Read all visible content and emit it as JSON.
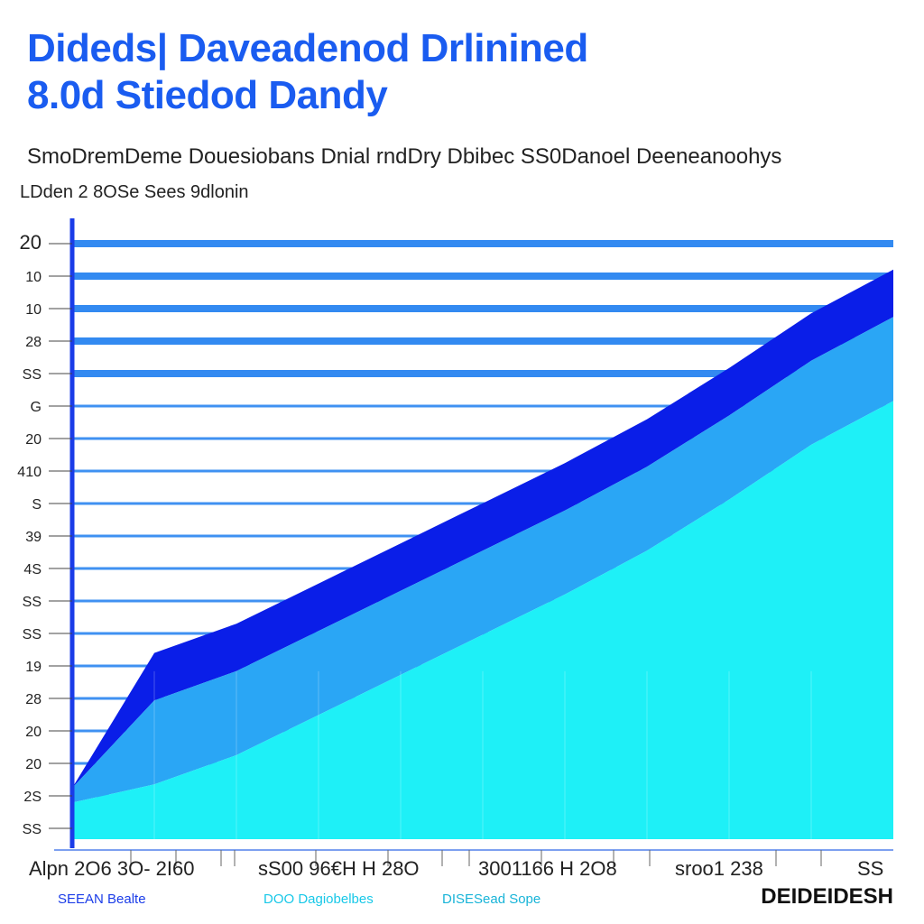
{
  "header": {
    "title_line1": "Dideds| Daveadenod Drlinined",
    "title_line2": "8.0d Stiedod Dandy",
    "subtitle": "SmoDremDeme Douesiobans Dnial rndDry Dbibec SS0Danoel Deeneanoohys",
    "series_label": "LDden 2 8OSe  Sees 9dlonin"
  },
  "chart_data": {
    "type": "area",
    "title": "Dideds| Daveadenod Drlinined 8.0d Stiedod Dandy",
    "subtitle": "SmoDremDeme Douesiobans Dnial rndDry Dbibec SS0Danoel Deeneanoohys",
    "y_tick_labels": [
      "20",
      "10",
      "10",
      "28",
      "SS",
      "G",
      "20",
      "410",
      "S",
      "39",
      "4S",
      "SS",
      "SS",
      "19",
      "28",
      "20",
      "20",
      "2S",
      "SS"
    ],
    "x_tick_labels": [
      "Alpn 2O6 3O- 2I60",
      "sS00 96€H H 28O",
      "3001166 H 2O8",
      "sroo1 238",
      "SS"
    ],
    "x": [
      0,
      1,
      2,
      3,
      4,
      5,
      6,
      7,
      8,
      9,
      10
    ],
    "series": [
      {
        "values": [
          1.0,
          1.5,
          2.3,
          3.4,
          4.5,
          5.6,
          6.7,
          7.9,
          9.3,
          10.8,
          12.0
        ],
        "color": "#1ef0f7"
      },
      {
        "values": [
          0.4,
          2.3,
          2.3,
          2.3,
          2.3,
          2.3,
          2.3,
          2.3,
          2.3,
          2.3,
          2.3
        ],
        "color": "#2aa6f5"
      },
      {
        "values": [
          0.0,
          1.3,
          1.3,
          1.3,
          1.3,
          1.3,
          1.3,
          1.3,
          1.3,
          1.3,
          1.3
        ],
        "color": "#0a1ee8"
      }
    ],
    "ylim": [
      0,
      17
    ],
    "grid": true,
    "legend": [
      "SEEAN Bealte",
      "DOO Dagiobelbes",
      "DISESead Sope"
    ],
    "legend_placement": "bottom"
  },
  "colors": {
    "title": "#1a5cf0",
    "axis": "#1a3ce8",
    "grid": "#1e7ef0",
    "legend1": "#1a3ce8",
    "legend2": "#18c8e8",
    "legend3": "#18b4d8"
  },
  "brand": "DEIDEIDESH"
}
